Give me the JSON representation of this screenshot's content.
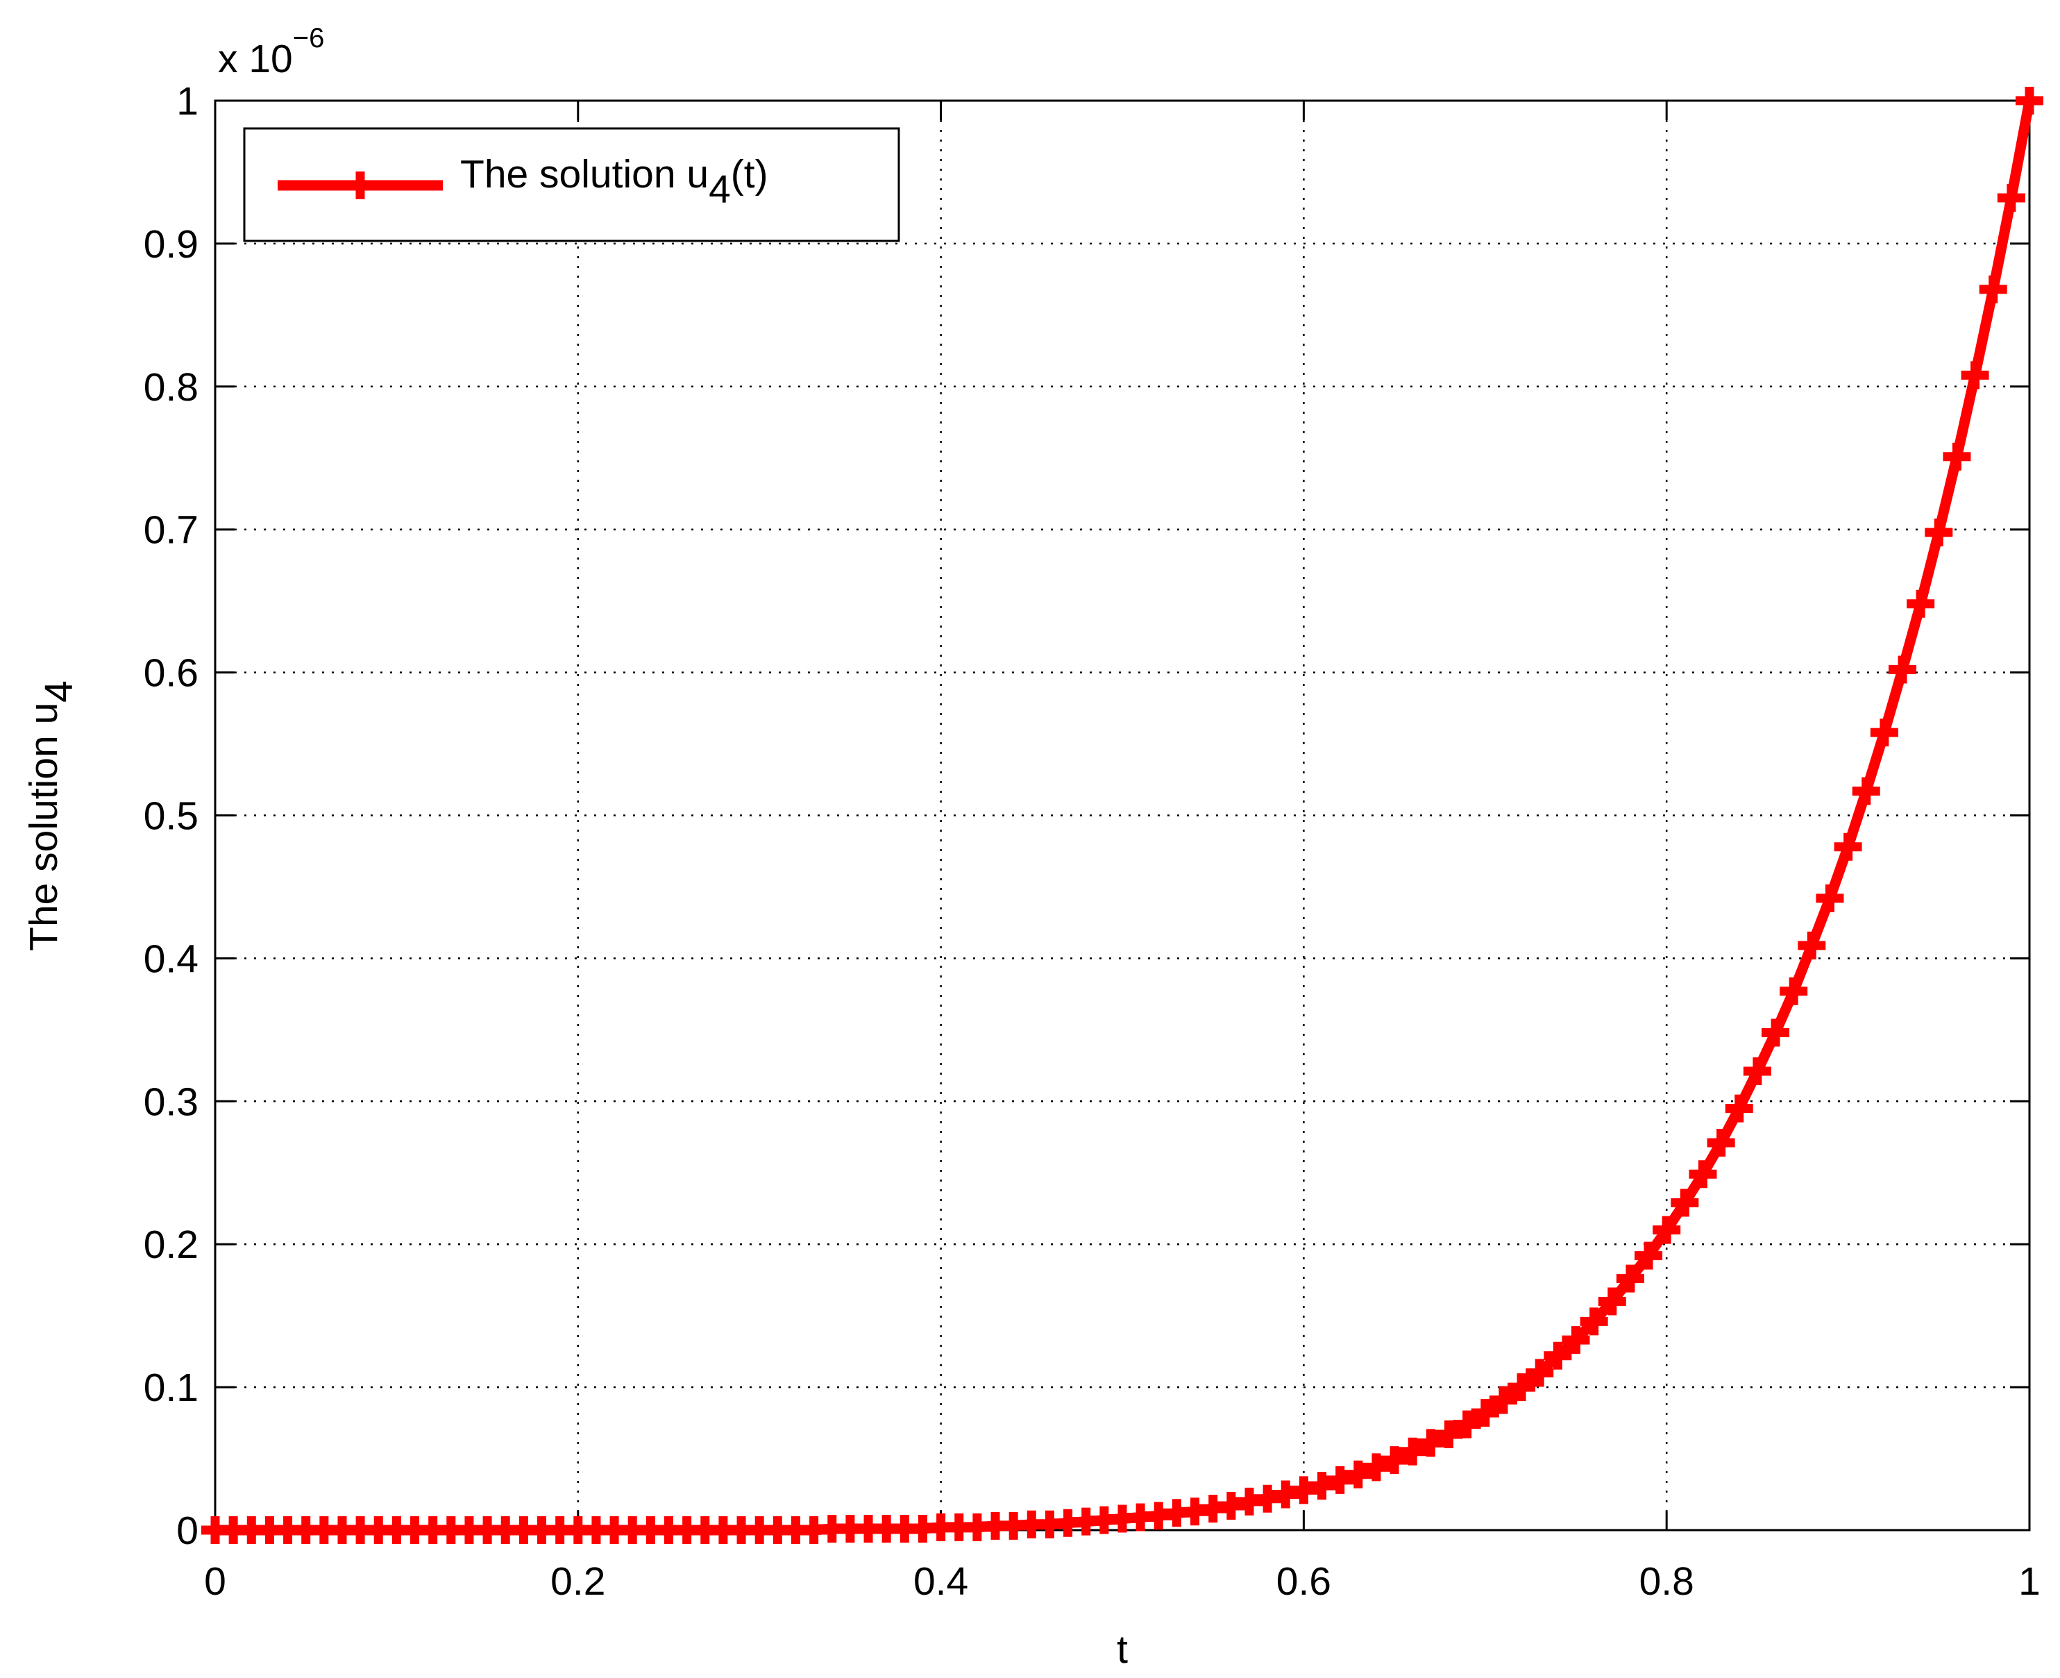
{
  "chart_data": {
    "type": "line",
    "ylabel": "The solution u",
    "ylabel_subscript": "4",
    "xlabel": "t",
    "y_multiplier": "x 10",
    "y_multiplier_exponent": "−6",
    "x": [
      0,
      0.01,
      0.02,
      0.03,
      0.04,
      0.05,
      0.06,
      0.07,
      0.08,
      0.09,
      0.1,
      0.11,
      0.12,
      0.13,
      0.14,
      0.15,
      0.16,
      0.17,
      0.18,
      0.19,
      0.2,
      0.21,
      0.22,
      0.23,
      0.24,
      0.25,
      0.26,
      0.27,
      0.28,
      0.29,
      0.3,
      0.31,
      0.32,
      0.33,
      0.34,
      0.35,
      0.36,
      0.37,
      0.38,
      0.39,
      0.4,
      0.41,
      0.42,
      0.43,
      0.44,
      0.45,
      0.46,
      0.47,
      0.48,
      0.49,
      0.5,
      0.51,
      0.52,
      0.53,
      0.54,
      0.55,
      0.56,
      0.57,
      0.58,
      0.59,
      0.6,
      0.61,
      0.62,
      0.63,
      0.64,
      0.65,
      0.66,
      0.67,
      0.68,
      0.69,
      0.7,
      0.71,
      0.72,
      0.73,
      0.74,
      0.75,
      0.76,
      0.77,
      0.78,
      0.79,
      0.8,
      0.81,
      0.82,
      0.83,
      0.84,
      0.85,
      0.86,
      0.87,
      0.88,
      0.89,
      0.9,
      0.91,
      0.92,
      0.93,
      0.94,
      0.95,
      0.96,
      0.97,
      0.98,
      0.99,
      1
    ],
    "series": [
      {
        "name": "The solution u",
        "name_subscript": "4",
        "name_suffix": "(t)",
        "color": "#ff0000",
        "marker": "plus",
        "values": [
          0,
          0,
          0,
          0,
          0,
          0,
          0,
          0,
          0,
          0,
          0,
          0,
          0,
          0,
          0,
          0,
          0,
          0,
          0,
          0,
          0,
          0,
          0,
          0,
          0,
          0,
          0,
          0,
          0,
          0,
          0,
          0,
          0,
          0,
          0.001,
          0.001,
          0.001,
          0.001,
          0.001,
          0.001,
          0.002,
          0.002,
          0.002,
          0.003,
          0.003,
          0.004,
          0.004,
          0.005,
          0.006,
          0.007,
          0.008,
          0.009,
          0.01,
          0.012,
          0.013,
          0.015,
          0.017,
          0.02,
          0.022,
          0.025,
          0.028,
          0.031,
          0.035,
          0.039,
          0.044,
          0.049,
          0.055,
          0.061,
          0.067,
          0.074,
          0.082,
          0.091,
          0.1,
          0.11,
          0.122,
          0.133,
          0.146,
          0.16,
          0.176,
          0.192,
          0.21,
          0.229,
          0.249,
          0.271,
          0.295,
          0.321,
          0.348,
          0.377,
          0.409,
          0.442,
          0.478,
          0.517,
          0.558,
          0.602,
          0.648,
          0.698,
          0.751,
          0.808,
          0.868,
          0.932,
          1
        ]
      }
    ],
    "xlim": [
      0,
      1
    ],
    "ylim": [
      0,
      1
    ],
    "xticks": [
      0,
      0.2,
      0.4,
      0.6,
      0.8,
      1
    ],
    "yticks": [
      0,
      0.1,
      0.2,
      0.3,
      0.4,
      0.5,
      0.6,
      0.7,
      0.8,
      0.9,
      1
    ],
    "grid": true,
    "legend": "upper left"
  }
}
